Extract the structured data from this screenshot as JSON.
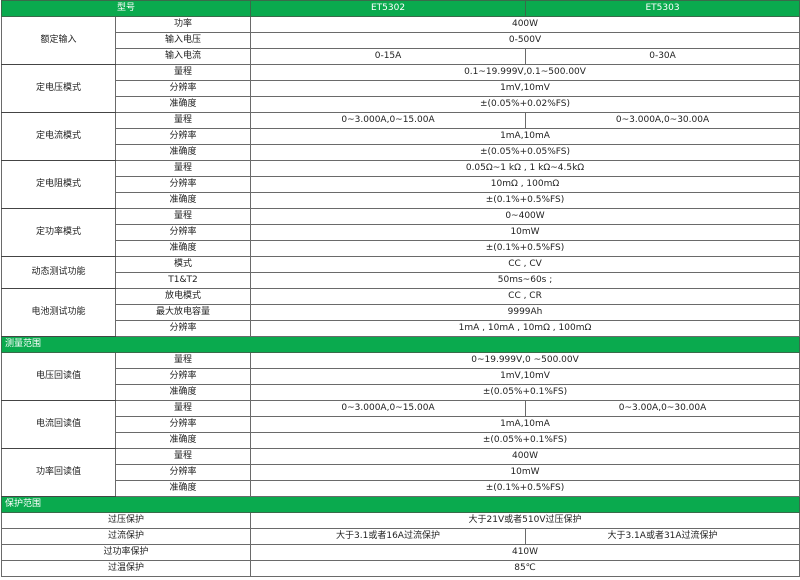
{
  "header": {
    "model_label": "型号",
    "models": [
      "ET5302",
      "ET5303"
    ]
  },
  "colors": {
    "header_bg": "#0aaa4e",
    "header_text": "#ffffff"
  },
  "blocks": [
    {
      "type": "group",
      "name": "额定输入",
      "rows": [
        {
          "param": "功率",
          "values": [
            "400W"
          ]
        },
        {
          "param": "输入电压",
          "values": [
            "0-500V"
          ]
        },
        {
          "param": "输入电流",
          "values": [
            "0-15A",
            "0-30A"
          ]
        }
      ]
    },
    {
      "type": "group",
      "name": "定电压模式",
      "rows": [
        {
          "param": "量程",
          "values": [
            "0.1~19.999V,0.1~500.00V"
          ]
        },
        {
          "param": "分辨率",
          "values": [
            "1mV,10mV"
          ]
        },
        {
          "param": "准确度",
          "values": [
            "±(0.05%+0.02%FS)"
          ]
        }
      ]
    },
    {
      "type": "group",
      "name": "定电流模式",
      "rows": [
        {
          "param": "量程",
          "values": [
            "0~3.000A,0~15.00A",
            "0~3.000A,0~30.00A"
          ]
        },
        {
          "param": "分辨率",
          "values": [
            "1mA,10mA"
          ]
        },
        {
          "param": "准确度",
          "values": [
            "±(0.05%+0.05%FS)"
          ]
        }
      ]
    },
    {
      "type": "group",
      "name": "定电阻模式",
      "rows": [
        {
          "param": "量程",
          "values": [
            "0.05Ω~1 kΩ , 1 kΩ~4.5kΩ"
          ]
        },
        {
          "param": "分辨率",
          "values": [
            "10mΩ , 100mΩ"
          ]
        },
        {
          "param": "准确度",
          "values": [
            "±(0.1%+0.5%FS)"
          ]
        }
      ]
    },
    {
      "type": "group",
      "name": "定功率模式",
      "rows": [
        {
          "param": "量程",
          "values": [
            "0~400W"
          ]
        },
        {
          "param": "分辨率",
          "values": [
            "10mW"
          ]
        },
        {
          "param": "准确度",
          "values": [
            "±(0.1%+0.5%FS)"
          ]
        }
      ]
    },
    {
      "type": "group",
      "name": "动态测试功能",
      "rows": [
        {
          "param": "模式",
          "values": [
            "CC , CV"
          ]
        },
        {
          "param": "T1&T2",
          "values": [
            "50ms~60s ;"
          ]
        }
      ]
    },
    {
      "type": "group",
      "name": "电池测试功能",
      "rows": [
        {
          "param": "放电模式",
          "values": [
            "CC , CR"
          ]
        },
        {
          "param": "最大放电容量",
          "values": [
            "9999Ah"
          ]
        },
        {
          "param": "分辨率",
          "values": [
            "1mA , 10mA , 10mΩ , 100mΩ"
          ]
        }
      ]
    },
    {
      "type": "section",
      "name": "测量范围"
    },
    {
      "type": "group",
      "name": "电压回读值",
      "rows": [
        {
          "param": "量程",
          "values": [
            "0~19.999V,0 ~500.00V"
          ]
        },
        {
          "param": "分辨率",
          "values": [
            "1mV,10mV"
          ]
        },
        {
          "param": "准确度",
          "values": [
            "±(0.05%+0.1%FS)"
          ]
        }
      ]
    },
    {
      "type": "group",
      "name": "电流回读值",
      "rows": [
        {
          "param": "量程",
          "values": [
            "0~3.000A,0~15.00A",
            "0~3.00A,0~30.00A"
          ]
        },
        {
          "param": "分辨率",
          "values": [
            "1mA,10mA"
          ]
        },
        {
          "param": "准确度",
          "values": [
            "±(0.05%+0.1%FS)"
          ]
        }
      ]
    },
    {
      "type": "group",
      "name": "功率回读值",
      "rows": [
        {
          "param": "量程",
          "values": [
            "400W"
          ]
        },
        {
          "param": "分辨率",
          "values": [
            "10mW"
          ]
        },
        {
          "param": "准确度",
          "values": [
            "±(0.1%+0.5%FS)"
          ]
        }
      ]
    },
    {
      "type": "section",
      "name": "保护范围"
    },
    {
      "type": "protect",
      "name": "过压保护",
      "values": [
        "大于21V或者510V过压保护"
      ]
    },
    {
      "type": "protect",
      "name": "过流保护",
      "values": [
        "大于3.1或者16A过流保护",
        "大于3.1A或者31A过流保护"
      ]
    },
    {
      "type": "protect",
      "name": "过功率保护",
      "values": [
        "410W"
      ]
    },
    {
      "type": "protect",
      "name": "过温保护",
      "values": [
        "85℃"
      ]
    }
  ]
}
